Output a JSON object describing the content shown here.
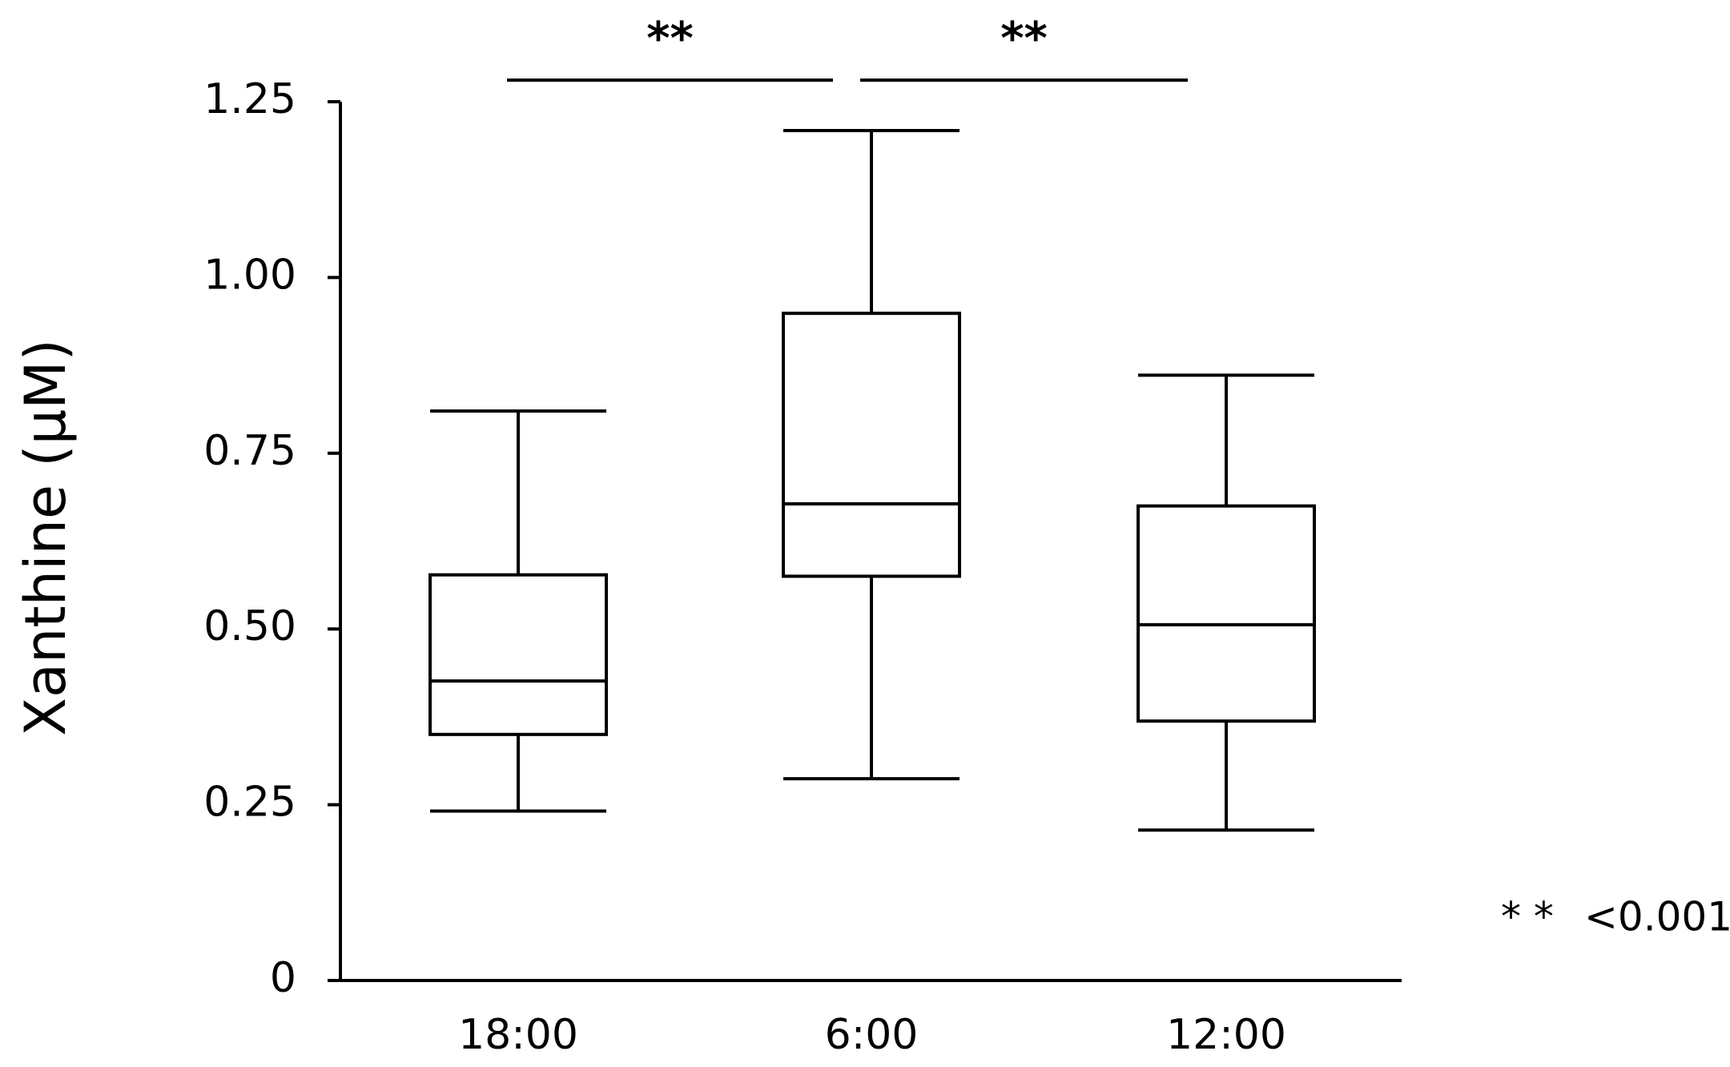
{
  "chart_data": {
    "type": "box",
    "y_label": "Xanthine (μM)",
    "categories": [
      "18:00",
      "6:00",
      "12:00"
    ],
    "boxes": [
      {
        "min": 0.241,
        "q1": 0.35,
        "median": 0.426,
        "q3": 0.577,
        "max": 0.81
      },
      {
        "min": 0.287,
        "q1": 0.575,
        "median": 0.678,
        "q3": 0.949,
        "max": 1.209
      },
      {
        "min": 0.214,
        "q1": 0.369,
        "median": 0.506,
        "q3": 0.675,
        "max": 0.861
      }
    ],
    "color": "#000000",
    "ylim": [
      0,
      1.25
    ],
    "yticks": [
      0,
      {
        "value": 0.25,
        "label": "0.25"
      },
      {
        "value": 0.5,
        "label": "0.50"
      },
      {
        "value": 0.75,
        "label": "0.75"
      },
      {
        "value": 1,
        "label": "1.00"
      },
      {
        "value": 1.25,
        "label": "1.25"
      }
    ],
    "significance": [
      {
        "from": 0,
        "to": 1,
        "label": "**"
      },
      {
        "from": 1,
        "to": 2,
        "label": "**"
      }
    ],
    "note_symbol": "* *",
    "note_text": "<0.001"
  }
}
